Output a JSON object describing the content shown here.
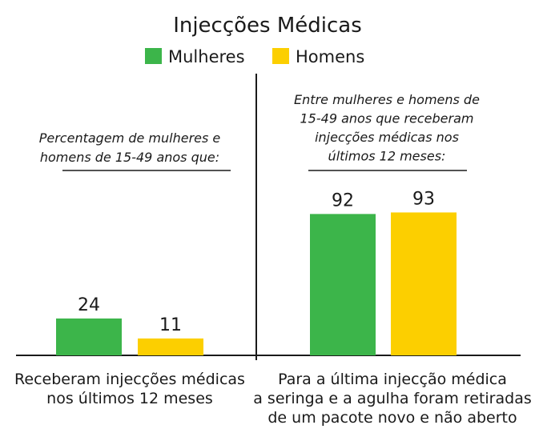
{
  "chart_data": {
    "type": "bar",
    "title": "Injecções Médicas",
    "categories": [
      "Receberam injecções médicas\nnos últimos 12 meses",
      "Para a última injecção médica\na seringa e a agulha foram retiradas\nde um pacote novo e não aberto"
    ],
    "annotations": [
      "Percentagem de mulheres e\nhomens de 15-49 anos que:",
      "Entre mulheres e homens de\n15-49 anos que receberam\ninjecções médicas nos\núltimos 12 meses:"
    ],
    "series": [
      {
        "name": "Mulheres",
        "color": "#3cb54a",
        "values": [
          24,
          92
        ]
      },
      {
        "name": "Homens",
        "color": "#fccf00",
        "values": [
          11,
          93
        ]
      }
    ]
  }
}
